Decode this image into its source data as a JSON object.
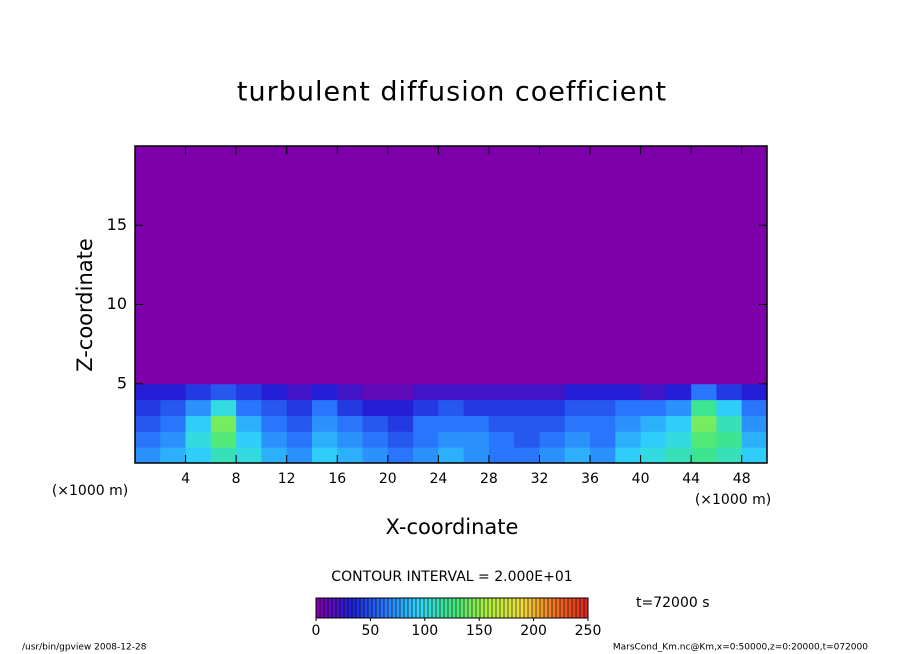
{
  "chart_data": {
    "type": "heatmap",
    "title": "turbulent diffusion coefficient",
    "xlabel": "X-coordinate",
    "ylabel": "Z-coordinate",
    "xunit": "(×1000 m)",
    "yunit": "(×1000 m)",
    "xlim": [
      0,
      50
    ],
    "ylim": [
      0,
      20
    ],
    "xticks": [
      4,
      8,
      12,
      16,
      20,
      24,
      28,
      32,
      36,
      40,
      44,
      48
    ],
    "yticks": [
      5,
      10,
      15
    ],
    "x_edges": [
      0,
      2,
      4,
      6,
      8,
      10,
      12,
      14,
      16,
      18,
      20,
      22,
      24,
      26,
      28,
      30,
      32,
      34,
      36,
      38,
      40,
      42,
      44,
      46,
      48,
      50
    ],
    "z_edges": [
      0,
      1,
      2,
      3,
      4,
      5,
      20
    ],
    "z": [
      [
        70,
        80,
        90,
        110,
        100,
        80,
        70,
        90,
        80,
        70,
        60,
        70,
        80,
        70,
        60,
        60,
        70,
        80,
        70,
        90,
        100,
        110,
        120,
        110,
        90
      ],
      [
        60,
        70,
        100,
        130,
        90,
        70,
        60,
        80,
        70,
        60,
        50,
        60,
        70,
        70,
        60,
        50,
        60,
        70,
        60,
        80,
        90,
        100,
        130,
        120,
        80
      ],
      [
        50,
        60,
        90,
        140,
        80,
        60,
        50,
        70,
        60,
        50,
        40,
        60,
        60,
        60,
        50,
        50,
        50,
        60,
        60,
        70,
        80,
        90,
        140,
        110,
        70
      ],
      [
        40,
        50,
        70,
        100,
        60,
        50,
        40,
        60,
        40,
        30,
        30,
        40,
        50,
        40,
        40,
        40,
        40,
        50,
        50,
        60,
        60,
        70,
        120,
        90,
        60
      ],
      [
        30,
        30,
        40,
        50,
        40,
        30,
        20,
        30,
        20,
        10,
        10,
        20,
        20,
        20,
        20,
        20,
        20,
        30,
        30,
        30,
        20,
        30,
        60,
        40,
        30
      ],
      [
        0,
        0,
        0,
        0,
        0,
        0,
        0,
        0,
        0,
        0,
        0,
        0,
        0,
        0,
        0,
        0,
        0,
        0,
        0,
        0,
        0,
        0,
        0,
        0,
        0
      ]
    ],
    "clim": [
      0,
      250
    ],
    "cticks": [
      0,
      50,
      100,
      150,
      200,
      250
    ],
    "colormap": [
      "#7e00aa",
      "#2020d8",
      "#2a7cff",
      "#30d8f8",
      "#40e880",
      "#b0f040",
      "#f0e040",
      "#f07020",
      "#d82020"
    ],
    "contour_interval": "CONTOUR INTERVAL = 2.000E+01",
    "time": "t=72000 s",
    "footer_left": "/usr/bin/gpview   2008-12-28",
    "footer_right": "MarsCond_Km.nc@Km,x=0:50000,z=0:20000,t=072000"
  }
}
